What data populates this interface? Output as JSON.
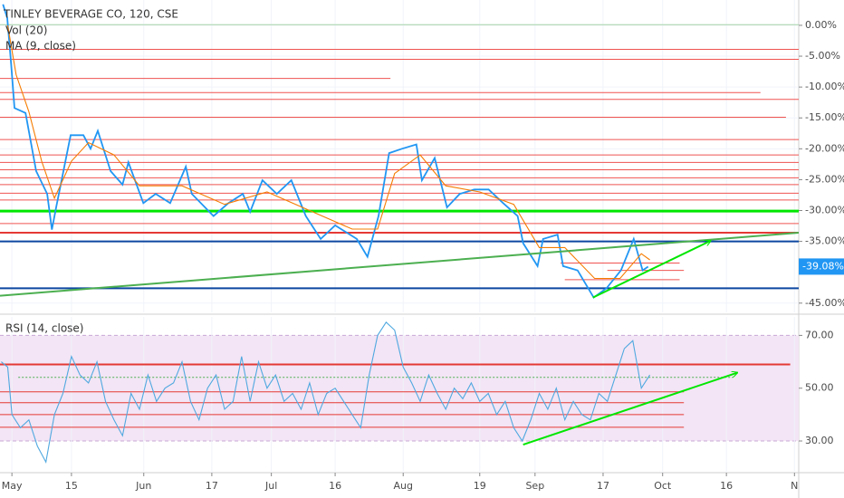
{
  "chart_data": [
    {
      "type": "line",
      "title": "TINLEY BEVERAGE CO, 120, CSE",
      "volume_label": "Vol (20)",
      "xlim": [
        -2.8,
        185
      ],
      "ylim": [
        -46.5,
        4.1
      ],
      "yticks": [
        {
          "value": 0,
          "label": "0.00%"
        },
        {
          "value": -5,
          "label": "-5.00%"
        },
        {
          "value": -10,
          "label": "-10.00%"
        },
        {
          "value": -15,
          "label": "-15.00%"
        },
        {
          "value": -20,
          "label": "-20.00%"
        },
        {
          "value": -25,
          "label": "-25.00%"
        },
        {
          "value": -30,
          "label": "-30.00%"
        },
        {
          "value": -35,
          "label": "-35.00%"
        },
        {
          "value": -45,
          "label": "-45.00%"
        }
      ],
      "grid": true,
      "last_value": {
        "value": -39.08,
        "label": "-39.08%"
      },
      "series": [
        {
          "color": "#2196f3",
          "x": [
            -2.1,
            -1.1,
            -0.2,
            0.6,
            3.2,
            5.7,
            8.3,
            9.4,
            10.4,
            13.8,
            16.8,
            18.5,
            20.2,
            23.2,
            26.0,
            27.4,
            30.9,
            33.8,
            37.2,
            40.9,
            42.3,
            47.4,
            50.9,
            54.3,
            56.0,
            58.9,
            62.3,
            65.7,
            69.1,
            72.6,
            76.0,
            81.1,
            83.6,
            86.2,
            88.7,
            91.7,
            95.1,
            96.4,
            99.4,
            102.3,
            105.3,
            108.7,
            112.1,
            115.5,
            118.9,
            120.2,
            123.6,
            124.9,
            128.3,
            129.6,
            133.0,
            136.8,
            139.8,
            143.2,
            146.2,
            148.3,
            149.6
          ],
          "values": [
            3.4,
            1.2,
            -6.1,
            -13.4,
            -14.2,
            -23.6,
            -27.3,
            -33.1,
            -29.5,
            -17.8,
            -17.8,
            -20.0,
            -17.1,
            -23.6,
            -25.8,
            -22.2,
            -28.8,
            -27.3,
            -28.8,
            -22.9,
            -27.3,
            -30.9,
            -28.8,
            -27.3,
            -30.2,
            -25.1,
            -27.3,
            -25.1,
            -30.9,
            -34.6,
            -32.4,
            -34.6,
            -37.5,
            -30.9,
            -20.7,
            -20.0,
            -19.3,
            -25.1,
            -21.5,
            -29.5,
            -27.3,
            -26.6,
            -26.6,
            -28.8,
            -30.9,
            -35.3,
            -39.0,
            -34.6,
            -33.9,
            -39.0,
            -39.7,
            -44.1,
            -42.6,
            -39.7,
            -34.6,
            -39.7,
            -39.1
          ]
        },
        {
          "name": "MA (9, close)",
          "color": "#f57c00",
          "x": [
            -1,
            1,
            4,
            7,
            10,
            14,
            18,
            24,
            30,
            40,
            50,
            60,
            70,
            80,
            86,
            90,
            96,
            102,
            110,
            118,
            124,
            130,
            137,
            143,
            148,
            150
          ],
          "values": [
            0,
            -8,
            -14,
            -22,
            -28,
            -22,
            -19,
            -21,
            -26,
            -26,
            -29,
            -27,
            -30,
            -33,
            -33,
            -24,
            -21,
            -26,
            -27,
            -29,
            -36,
            -36,
            -41,
            -41,
            -37,
            -38
          ]
        }
      ],
      "hlines": [
        {
          "value": 0.1,
          "color": "#a5d6a7"
        },
        {
          "value": -3.9,
          "color": "#ef5350"
        },
        {
          "value": -5.5,
          "color": "#ef5350"
        },
        {
          "value": -8.6,
          "color": "#ef5350",
          "end": 89
        },
        {
          "value": -10.9,
          "color": "#ef5350",
          "end": 176
        },
        {
          "value": -12.0,
          "color": "#ef5350"
        },
        {
          "value": -14.9,
          "color": "#ef5350",
          "end": 182
        },
        {
          "value": -18.5,
          "color": "#ef5350"
        },
        {
          "value": -21.0,
          "color": "#ef5350"
        },
        {
          "value": -22.2,
          "color": "#ef5350"
        },
        {
          "value": -23.4,
          "color": "#ef5350"
        },
        {
          "value": -24.7,
          "color": "#ef5350"
        },
        {
          "value": -25.8,
          "color": "#ef5350"
        },
        {
          "value": -27.2,
          "color": "#ef5350"
        },
        {
          "value": -28.3,
          "color": "#ef5350"
        },
        {
          "value": -30.1,
          "color": "#00e600",
          "width": 3
        },
        {
          "value": -32.1,
          "color": "#ef5350"
        },
        {
          "value": -33.6,
          "color": "#e53935",
          "width": 2
        },
        {
          "value": -35.0,
          "color": "#0d47a1",
          "width": 2
        },
        {
          "value": -38.5,
          "color": "#ef5350",
          "start": 129,
          "end": 157
        },
        {
          "value": -39.7,
          "color": "#ef5350",
          "start": 140,
          "end": 158
        },
        {
          "value": -41.2,
          "color": "#ef5350",
          "start": 130,
          "end": 157
        },
        {
          "value": -42.6,
          "color": "#0d47a1",
          "width": 2
        }
      ],
      "trendlines": [
        {
          "x": [
            -2.8,
            185
          ],
          "values": [
            -43.8,
            -33.6
          ],
          "color": "#4caf50"
        },
        {
          "x": [
            136.6,
            164.3
          ],
          "values": [
            -44.1,
            -34.9
          ],
          "color": "#4caf50",
          "arrow": true
        }
      ]
    },
    {
      "type": "line",
      "title": "RSI (14, close)",
      "xlim": [
        -2.8,
        185
      ],
      "ylim": [
        18,
        77
      ],
      "yticks": [
        {
          "value": 70,
          "label": "70.00"
        },
        {
          "value": 50,
          "label": "50.00"
        },
        {
          "value": 30,
          "label": "30.00"
        }
      ],
      "band": [
        30,
        70
      ],
      "xticks": [
        {
          "value": 0,
          "label": "May"
        },
        {
          "value": 14,
          "label": "15"
        },
        {
          "value": 31,
          "label": "Jun"
        },
        {
          "value": 47,
          "label": "17"
        },
        {
          "value": 61,
          "label": "Jul"
        },
        {
          "value": 76,
          "label": "16"
        },
        {
          "value": 92,
          "label": "Aug"
        },
        {
          "value": 110,
          "label": "19"
        },
        {
          "value": 123,
          "label": "Sep"
        },
        {
          "value": 139,
          "label": "17"
        },
        {
          "value": 153,
          "label": "Oct"
        },
        {
          "value": 168,
          "label": "16"
        },
        {
          "value": 184,
          "label": "N"
        }
      ],
      "series": [
        {
          "color": "#4fa8e0",
          "x": [
            -2.5,
            -1,
            0,
            2,
            4,
            6,
            8,
            10,
            12,
            14,
            16,
            18,
            20,
            22,
            24,
            26,
            28,
            30,
            32,
            34,
            36,
            38,
            40,
            42,
            44,
            46,
            48,
            50,
            52,
            54,
            56,
            58,
            60,
            62,
            64,
            66,
            68,
            70,
            72,
            74,
            76,
            78,
            80,
            82,
            84,
            86,
            88,
            90,
            92,
            94,
            96,
            98,
            100,
            102,
            104,
            106,
            108,
            110,
            112,
            114,
            116,
            118,
            120,
            122,
            124,
            126,
            128,
            130,
            132,
            134,
            136,
            138,
            140,
            142,
            144,
            146,
            148,
            150
          ],
          "values": [
            60,
            58,
            40,
            35,
            38,
            28,
            22,
            40,
            48,
            62,
            55,
            52,
            60,
            45,
            38,
            32,
            48,
            42,
            55,
            45,
            50,
            52,
            60,
            45,
            38,
            50,
            55,
            42,
            45,
            62,
            45,
            60,
            50,
            55,
            45,
            48,
            42,
            52,
            40,
            48,
            50,
            45,
            40,
            35,
            55,
            70,
            75,
            72,
            58,
            52,
            45,
            55,
            48,
            42,
            50,
            46,
            52,
            45,
            48,
            40,
            45,
            35,
            30,
            38,
            48,
            42,
            50,
            38,
            45,
            40,
            38,
            48,
            45,
            55,
            65,
            68,
            50,
            55
          ]
        }
      ],
      "hlines": [
        {
          "value": 59.0,
          "color": "#e53935",
          "width": 2,
          "end": 183
        },
        {
          "value": 54.1,
          "color": "#4caf50",
          "dash": true,
          "start": 1.5,
          "end": 169.6
        },
        {
          "value": 48.6,
          "color": "#e53935",
          "end": 158
        },
        {
          "value": 44.5,
          "color": "#e53935",
          "end": 158
        },
        {
          "value": 40.0,
          "color": "#e53935",
          "end": 158
        },
        {
          "value": 35.2,
          "color": "#e53935",
          "end": 158
        }
      ],
      "trendlines": [
        {
          "x": [
            120.2,
            170.6
          ],
          "values": [
            28.6,
            55.9
          ],
          "color": "#4caf50",
          "arrow": true
        }
      ]
    }
  ]
}
